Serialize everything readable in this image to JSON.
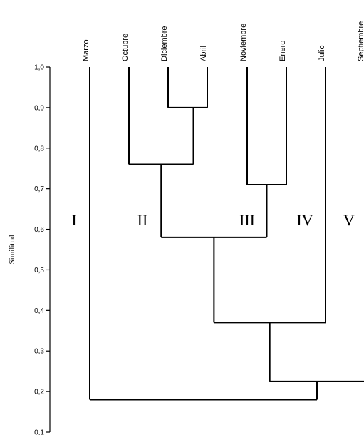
{
  "chart_data": {
    "type": "dendrogram",
    "ylabel": "Similitud",
    "ylim": [
      0.1,
      1.0
    ],
    "yticks": [
      "1,0",
      "0,9",
      "0,8",
      "0,7",
      "0,6",
      "0,5",
      "0,4",
      "0,3",
      "0,2",
      "0,1"
    ],
    "leaves": [
      "Marzo",
      "Octubre",
      "Diciembre",
      "Abril",
      "Noviembre",
      "Enero",
      "Julio",
      "Septiembre"
    ],
    "groups": [
      "I",
      "II",
      "III",
      "IV",
      "V"
    ],
    "merges": [
      {
        "a": "Diciembre",
        "b": "Abril",
        "similarity": 0.9
      },
      {
        "a": "Octubre",
        "b": "Diciembre+Abril",
        "similarity": 0.76
      },
      {
        "a": "Noviembre",
        "b": "Enero",
        "similarity": 0.71
      },
      {
        "a": "Octubre+Diciembre+Abril",
        "b": "Noviembre+Enero",
        "similarity": 0.58
      },
      {
        "a": "Octubre-Enero",
        "b": "Julio",
        "similarity": 0.37
      },
      {
        "a": "Octubre-Julio",
        "b": "Septiembre",
        "similarity": 0.225
      },
      {
        "a": "Marzo",
        "b": "Octubre-Septiembre",
        "similarity": 0.18
      }
    ]
  }
}
